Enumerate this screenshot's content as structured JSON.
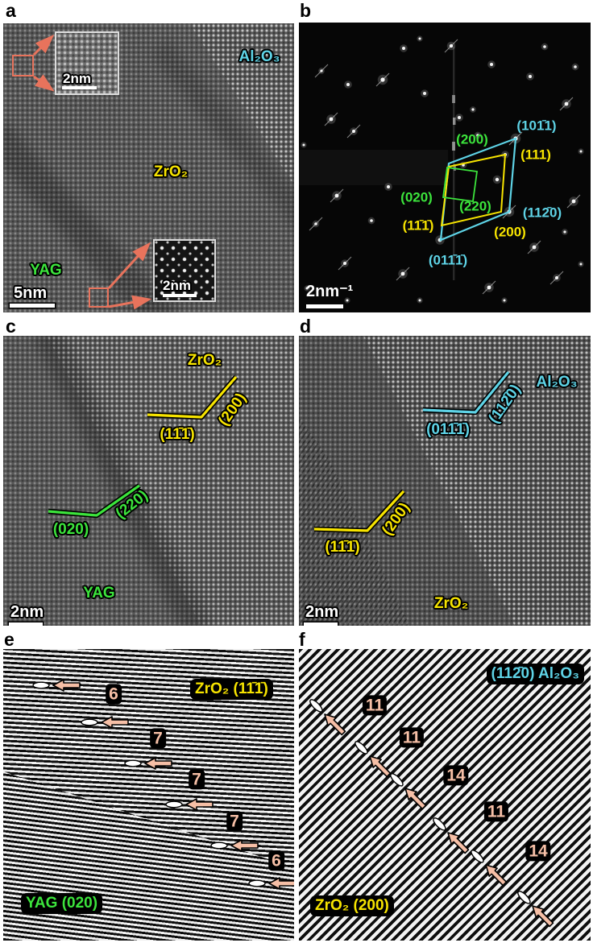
{
  "figure": {
    "panel_letters": [
      "a",
      "b",
      "c",
      "d",
      "e",
      "f"
    ]
  },
  "colors": {
    "cyan": "#5ed3e6",
    "yellow": "#f7e400",
    "green": "#3ce43c",
    "salmon": "#f6bfa6",
    "coral": "#e8735c",
    "white": "#ffffff"
  },
  "panels": {
    "a": {
      "label": "a",
      "phase_labels": {
        "al2o3": "Al₂O₃",
        "zro2": "ZrO₂",
        "yag": "YAG"
      },
      "scale_bar": "5nm",
      "inset_top": {
        "scale_bar": "2nm"
      },
      "inset_bottom": {
        "scale_bar": "2nm"
      }
    },
    "b": {
      "label": "b",
      "scale_bar": "2nm⁻¹",
      "reflections": {
        "green_200": "(200)",
        "cyan_1011": "(101̄1)",
        "yellow_111": "(111)",
        "green_020": "(020)",
        "green_220": "(220)",
        "yellow_m111": "(11̄1̄)",
        "cyan_1120": "(112̄0)",
        "yellow_200": "(200)",
        "cyan_0111": "(011̄1̄)"
      }
    },
    "c": {
      "label": "c",
      "phase_top": "ZrO₂",
      "phase_bottom": "YAG",
      "scale_bar": "2nm",
      "planes": {
        "yellow_111": "(11̄1̄)",
        "yellow_200": "(200)",
        "green_020": "(020)",
        "green_220": "(220)"
      }
    },
    "d": {
      "label": "d",
      "phase_top": "Al₂O₃",
      "phase_bottom": "ZrO₂",
      "scale_bar": "2nm",
      "planes": {
        "cyan_0111": "(011̄1̄)",
        "cyan_1120": "(112̄0)",
        "yellow_111": "(11̄1̄)",
        "yellow_200": "(200)"
      }
    },
    "e": {
      "label": "e",
      "region_top": "ZrO₂ (11̄1̄)",
      "region_bottom": "YAG (020)",
      "counts": [
        "6",
        "7",
        "7",
        "7",
        "6"
      ]
    },
    "f": {
      "label": "f",
      "region_top": "(112̄0) Al₂O₃",
      "region_bottom": "ZrO₂ (200)",
      "counts": [
        "11",
        "11",
        "14",
        "11",
        "14"
      ]
    }
  }
}
